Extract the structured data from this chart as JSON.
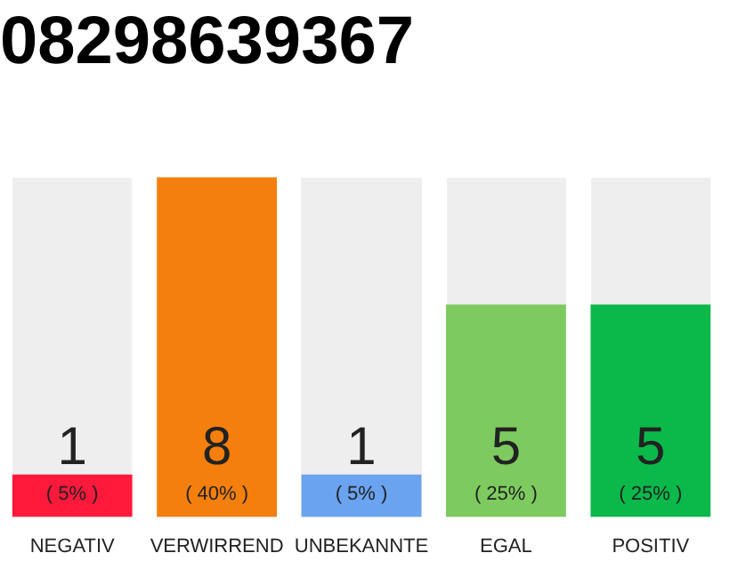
{
  "chart_data": {
    "type": "bar",
    "title": "08298639367",
    "categories": [
      "NEGATIV",
      "VERWIRREND",
      "UNBEKANNTE",
      "EGAL",
      "POSITIV"
    ],
    "values": [
      1,
      8,
      1,
      5,
      5
    ],
    "colors": [
      "#ff1a3c",
      "#f57f0c",
      "#6aa3ef",
      "#7dcb5f",
      "#0bb84a"
    ],
    "data_labels": true,
    "tick_labels": "x",
    "annotations": [
      "( 5% )",
      "( 40% )",
      "( 5% )",
      "( 25% )",
      "( 25% )"
    ]
  }
}
